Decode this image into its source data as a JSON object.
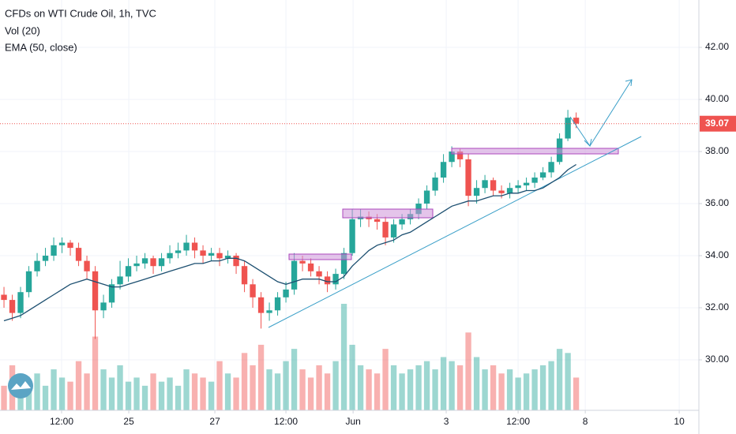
{
  "chart_data": {
    "type": "candlestick",
    "title": "CFDs on WTI Crude Oil, 1h, TVC",
    "up_color": "#26a69a",
    "down_color": "#ef5350",
    "x": [
      0,
      1,
      2,
      3,
      4,
      5,
      6,
      7,
      8,
      9,
      10,
      11,
      12,
      13,
      14,
      15,
      16,
      17,
      18,
      19,
      20,
      21,
      22,
      23,
      24,
      25,
      26,
      27,
      28,
      29,
      30,
      31,
      32,
      33,
      34,
      35,
      36,
      37,
      38,
      39,
      40,
      41,
      42,
      43,
      44,
      45,
      46,
      47,
      48,
      49,
      50,
      51,
      52,
      53,
      54,
      55,
      56,
      57,
      58,
      59,
      60,
      61,
      62,
      63,
      64,
      65,
      66,
      67,
      68,
      69
    ],
    "open": [
      32.5,
      32.3,
      31.8,
      32.6,
      33.4,
      33.8,
      34.0,
      34.4,
      34.5,
      34.3,
      33.8,
      33.4,
      31.9,
      32.2,
      32.9,
      33.2,
      33.6,
      33.7,
      33.9,
      33.6,
      33.9,
      34.1,
      34.2,
      34.5,
      34.2,
      34.0,
      34.1,
      33.9,
      34.0,
      33.6,
      32.9,
      32.4,
      31.8,
      31.9,
      32.4,
      32.7,
      33.8,
      33.7,
      33.4,
      33.2,
      32.9,
      33.3,
      34.1,
      35.4,
      35.5,
      35.4,
      35.3,
      34.7,
      35.2,
      35.4,
      35.6,
      36.0,
      36.5,
      37.0,
      37.6,
      38.0,
      37.7,
      36.3,
      36.6,
      36.9,
      36.5,
      36.4,
      36.6,
      36.7,
      36.8,
      37.0,
      37.2,
      37.6,
      38.5,
      39.3
    ],
    "high": [
      32.8,
      32.5,
      32.8,
      33.6,
      34.1,
      34.3,
      34.7,
      34.7,
      34.6,
      34.5,
      34.0,
      33.6,
      32.5,
      33.1,
      33.8,
      33.9,
      34.0,
      34.1,
      34.0,
      34.1,
      34.4,
      34.5,
      34.8,
      34.7,
      34.4,
      34.3,
      34.3,
      34.2,
      34.1,
      33.8,
      33.1,
      32.6,
      32.2,
      32.6,
      33.0,
      34.1,
      34.0,
      33.9,
      33.6,
      33.4,
      33.5,
      34.3,
      35.8,
      35.8,
      35.7,
      35.6,
      35.5,
      35.4,
      35.6,
      35.8,
      36.2,
      36.7,
      37.2,
      37.9,
      38.2,
      38.1,
      37.9,
      36.9,
      37.1,
      37.0,
      36.7,
      36.8,
      36.9,
      37.0,
      37.2,
      37.4,
      37.8,
      38.7,
      39.6,
      39.5
    ],
    "low": [
      32.0,
      31.5,
      31.6,
      32.4,
      33.2,
      33.6,
      33.8,
      34.1,
      34.0,
      33.6,
      33.1,
      30.8,
      31.6,
      32.0,
      32.7,
      33.0,
      33.4,
      33.5,
      33.3,
      33.4,
      33.7,
      33.9,
      34.0,
      33.9,
      33.7,
      33.8,
      33.6,
      33.7,
      33.3,
      32.6,
      32.0,
      31.2,
      31.5,
      31.7,
      32.2,
      32.5,
      33.4,
      33.2,
      32.9,
      32.6,
      32.7,
      33.1,
      34.0,
      35.1,
      35.1,
      35.0,
      34.4,
      34.5,
      35.0,
      35.2,
      35.4,
      35.8,
      36.3,
      36.8,
      37.4,
      37.4,
      35.9,
      36.0,
      36.4,
      36.3,
      36.2,
      36.2,
      36.4,
      36.5,
      36.6,
      36.9,
      37.0,
      37.5,
      38.4,
      38.9
    ],
    "close": [
      32.3,
      31.8,
      32.6,
      33.4,
      33.8,
      34.0,
      34.4,
      34.5,
      34.3,
      33.8,
      33.4,
      31.9,
      32.2,
      32.9,
      33.2,
      33.6,
      33.7,
      33.9,
      33.6,
      33.9,
      34.1,
      34.2,
      34.5,
      34.2,
      34.0,
      34.1,
      33.9,
      34.0,
      33.6,
      32.9,
      32.4,
      31.8,
      31.9,
      32.4,
      32.7,
      33.8,
      33.7,
      33.4,
      33.2,
      32.9,
      33.3,
      34.1,
      35.4,
      35.5,
      35.4,
      35.3,
      34.7,
      35.2,
      35.4,
      35.6,
      36.0,
      36.5,
      37.0,
      37.6,
      38.0,
      37.7,
      36.3,
      36.6,
      36.9,
      36.5,
      36.4,
      36.6,
      36.7,
      36.8,
      37.0,
      37.2,
      37.6,
      38.5,
      39.3,
      39.07
    ],
    "volume": {
      "name": "Vol (20)",
      "values": [
        30,
        55,
        40,
        35,
        45,
        30,
        50,
        40,
        35,
        60,
        45,
        90,
        50,
        40,
        55,
        35,
        40,
        30,
        45,
        35,
        40,
        30,
        50,
        45,
        40,
        35,
        60,
        45,
        40,
        70,
        55,
        80,
        50,
        45,
        60,
        75,
        50,
        40,
        55,
        45,
        60,
        130,
        80,
        55,
        50,
        45,
        75,
        55,
        45,
        50,
        55,
        60,
        50,
        65,
        60,
        55,
        95,
        65,
        50,
        55,
        45,
        50,
        40,
        45,
        50,
        55,
        60,
        75,
        70,
        40
      ]
    },
    "ema": {
      "name": "EMA (50, close)",
      "color": "#1c4f70",
      "values": [
        31.5,
        31.6,
        31.7,
        31.9,
        32.1,
        32.3,
        32.5,
        32.7,
        32.9,
        33.0,
        33.1,
        33.0,
        32.9,
        32.8,
        32.8,
        32.9,
        33.0,
        33.1,
        33.2,
        33.3,
        33.4,
        33.5,
        33.6,
        33.7,
        33.7,
        33.8,
        33.8,
        33.9,
        33.9,
        33.8,
        33.6,
        33.4,
        33.2,
        33.0,
        32.9,
        33.0,
        33.1,
        33.1,
        33.1,
        33.0,
        33.0,
        33.2,
        33.6,
        33.9,
        34.2,
        34.4,
        34.5,
        34.6,
        34.8,
        34.9,
        35.1,
        35.3,
        35.5,
        35.7,
        35.9,
        36.0,
        36.1,
        36.1,
        36.2,
        36.3,
        36.3,
        36.4,
        36.4,
        36.5,
        36.5,
        36.6,
        36.8,
        37.0,
        37.3,
        37.5
      ]
    },
    "last_price": 39.07,
    "last_price_color": "#ef5350",
    "xlim": [
      -0.48,
      83.8
    ],
    "xticks": [
      {
        "value": 6.95,
        "label": "12:00"
      },
      {
        "value": 15.05,
        "label": "25"
      },
      {
        "value": 25.43,
        "label": "27"
      },
      {
        "value": 34,
        "label": "12:00"
      },
      {
        "value": 42.1,
        "label": "Jun"
      },
      {
        "value": 53.33,
        "label": "3"
      },
      {
        "value": 62,
        "label": "12:00"
      },
      {
        "value": 70.1,
        "label": "8"
      },
      {
        "value": 81.43,
        "label": "10"
      }
    ],
    "ylim": [
      28.06,
      43.82
    ],
    "yticks": [
      {
        "value": 30,
        "label": "30.00"
      },
      {
        "value": 32,
        "label": "32.00"
      },
      {
        "value": 34,
        "label": "34.00"
      },
      {
        "value": 36,
        "label": "36.00"
      },
      {
        "value": 38,
        "label": "38.00"
      },
      {
        "value": 40,
        "label": "40.00"
      },
      {
        "value": 42,
        "label": "42.00"
      }
    ],
    "grid": true
  }
}
